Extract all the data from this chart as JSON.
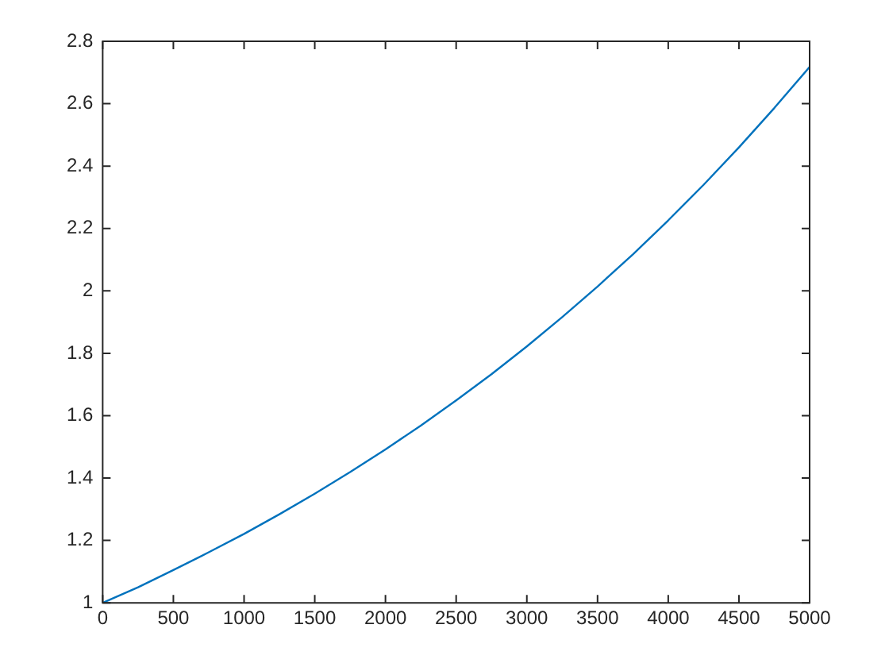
{
  "chart_data": {
    "type": "line",
    "x": [
      0,
      250,
      500,
      750,
      1000,
      1250,
      1500,
      1750,
      2000,
      2250,
      2500,
      2750,
      3000,
      3250,
      3500,
      3750,
      4000,
      4250,
      4500,
      4750,
      5000
    ],
    "series": [
      {
        "color": "#0072bd",
        "values": [
          1.0,
          1.05,
          1.105,
          1.162,
          1.221,
          1.284,
          1.35,
          1.419,
          1.492,
          1.568,
          1.649,
          1.733,
          1.822,
          1.916,
          2.014,
          2.117,
          2.226,
          2.34,
          2.46,
          2.586,
          2.718
        ]
      }
    ],
    "xlim": [
      0,
      5000
    ],
    "xticks": [
      0,
      500,
      1000,
      1500,
      2000,
      2500,
      3000,
      3500,
      4000,
      4500,
      5000
    ],
    "ylim": [
      1,
      2.8
    ],
    "yticks": [
      1,
      1.2,
      1.4,
      1.6,
      1.8,
      2,
      2.2,
      2.4,
      2.6,
      2.8
    ],
    "legend": false,
    "marker": "none",
    "line_style": "solid"
  }
}
